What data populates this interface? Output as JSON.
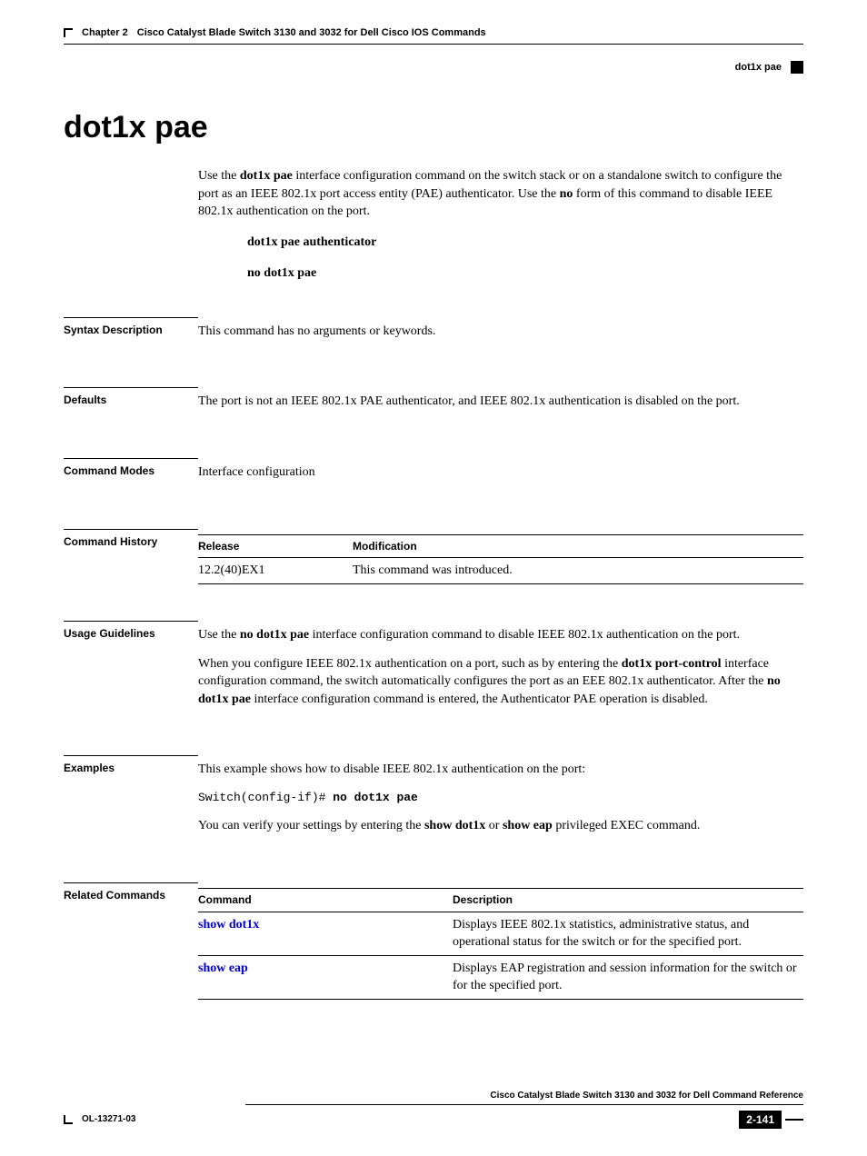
{
  "header": {
    "chapter": "Chapter 2",
    "chapter_title": "Cisco Catalyst Blade Switch 3130 and 3032 for Dell Cisco IOS Commands",
    "command_name": "dot1x pae"
  },
  "title": "dot1x pae",
  "intro": {
    "prefix": "Use the ",
    "cmd1": "dot1x pae",
    "mid1": " interface configuration command on the switch stack or on a standalone switch to configure the port as an IEEE 802.1x port access entity (PAE) authenticator. Use the ",
    "cmd2": "no",
    "mid2": " form of this command to disable IEEE 802.1x authentication on the port."
  },
  "syntax": {
    "line1": "dot1x pae authenticator",
    "line2": "no dot1x pae"
  },
  "sections": {
    "syntax_description": {
      "label": "Syntax Description",
      "text": "This command has no arguments or keywords."
    },
    "defaults": {
      "label": "Defaults",
      "text": "The port is not an IEEE 802.1x PAE authenticator, and IEEE 802.1x authentication is disabled on the port."
    },
    "command_modes": {
      "label": "Command Modes",
      "text": "Interface configuration"
    },
    "command_history": {
      "label": "Command History",
      "headers": {
        "col1": "Release",
        "col2": "Modification"
      },
      "rows": [
        {
          "col1": "12.2(40)EX1",
          "col2": "This command was introduced."
        }
      ]
    },
    "usage_guidelines": {
      "label": "Usage Guidelines",
      "p1_prefix": "Use the ",
      "p1_bold": "no dot1x pae",
      "p1_suffix": " interface configuration command to disable IEEE 802.1x authentication on the port.",
      "p2_prefix": "When you configure IEEE 802.1x authentication on a port, such as by entering the ",
      "p2_bold1": "dot1x port-control",
      "p2_mid": " interface configuration command, the switch automatically configures the port as an EEE 802.1x authenticator. After the ",
      "p2_bold2": "no dot1x pae",
      "p2_suffix": " interface configuration command is entered, the Authenticator PAE operation is disabled."
    },
    "examples": {
      "label": "Examples",
      "p1": "This example shows how to disable IEEE 802.1x authentication on the port:",
      "code_prefix": "Switch(config-if)# ",
      "code_bold": "no dot1x pae",
      "p2_prefix": "You can verify your settings by entering the ",
      "p2_bold1": "show dot1x",
      "p2_mid": " or ",
      "p2_bold2": "show eap",
      "p2_suffix": " privileged EXEC command."
    },
    "related_commands": {
      "label": "Related Commands",
      "headers": {
        "col1": "Command",
        "col2": "Description"
      },
      "rows": [
        {
          "col1": "show dot1x",
          "col2": "Displays IEEE 802.1x statistics, administrative status, and operational status for the switch or for the specified port."
        },
        {
          "col1": "show eap",
          "col2": "Displays EAP registration and session information for the switch or for the specified port."
        }
      ]
    }
  },
  "footer": {
    "doc_title": "Cisco Catalyst Blade Switch 3130 and 3032 for Dell Command Reference",
    "doc_id": "OL-13271-03",
    "page_number": "2-141"
  }
}
